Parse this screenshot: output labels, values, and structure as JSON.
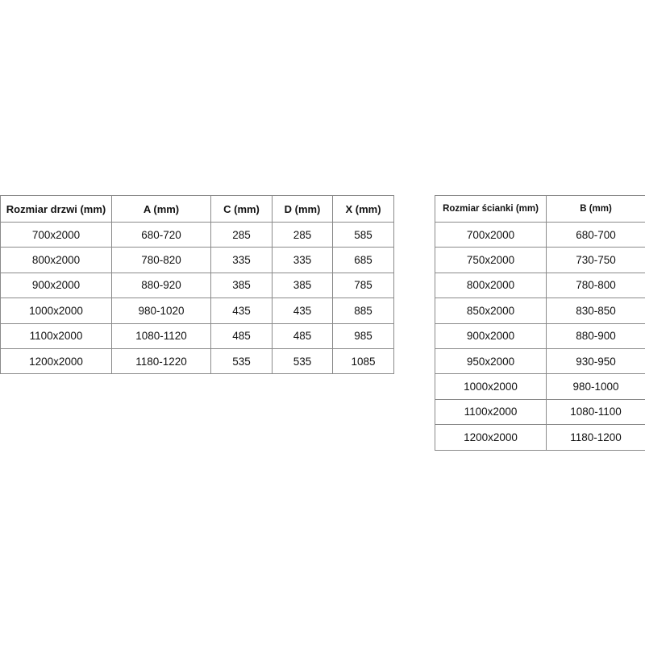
{
  "door_table": {
    "headers": [
      "Rozmiar drzwi (mm)",
      "A (mm)",
      "C (mm)",
      "D (mm)",
      "X (mm)"
    ],
    "rows": [
      [
        "700x2000",
        "680-720",
        "285",
        "285",
        "585"
      ],
      [
        "800x2000",
        "780-820",
        "335",
        "335",
        "685"
      ],
      [
        "900x2000",
        "880-920",
        "385",
        "385",
        "785"
      ],
      [
        "1000x2000",
        "980-1020",
        "435",
        "435",
        "885"
      ],
      [
        "1100x2000",
        "1080-1120",
        "485",
        "485",
        "985"
      ],
      [
        "1200x2000",
        "1180-1220",
        "535",
        "535",
        "1085"
      ]
    ]
  },
  "wall_table": {
    "headers": [
      "Rozmiar ścianki (mm)",
      "B (mm)"
    ],
    "rows": [
      [
        "700x2000",
        "680-700"
      ],
      [
        "750x2000",
        "730-750"
      ],
      [
        "800x2000",
        "780-800"
      ],
      [
        "850x2000",
        "830-850"
      ],
      [
        "900x2000",
        "880-900"
      ],
      [
        "950x2000",
        "930-950"
      ],
      [
        "1000x2000",
        "980-1000"
      ],
      [
        "1100x2000",
        "1080-1100"
      ],
      [
        "1200x2000",
        "1180-1200"
      ]
    ]
  }
}
